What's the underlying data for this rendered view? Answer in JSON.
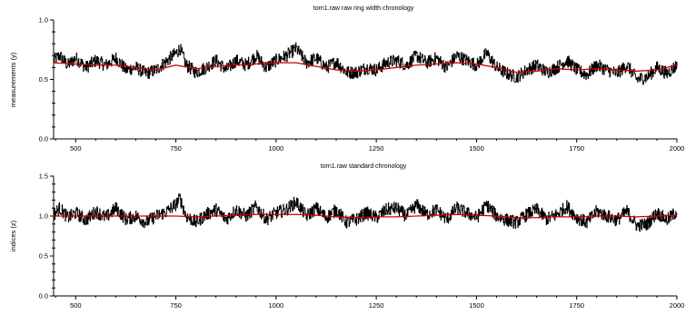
{
  "chart_data": [
    {
      "type": "line",
      "title": "torn1.raw raw ring width chronology",
      "xlabel": "",
      "ylabel": "measurements (y)",
      "xlim": [
        445,
        2000
      ],
      "ylim": [
        0.0,
        1.0
      ],
      "xticks": [
        500,
        750,
        1000,
        1250,
        1500,
        1750,
        2000
      ],
      "yticks": [
        0.0,
        0.5,
        1.0
      ],
      "ytick_labels": [
        "0.0",
        "0.5",
        "1.0"
      ],
      "grid": false,
      "series": [
        {
          "color": "#000000",
          "style": "raw",
          "x": [
            445,
            460,
            480,
            500,
            525,
            550,
            575,
            600,
            625,
            650,
            675,
            700,
            725,
            750,
            760,
            775,
            800,
            825,
            850,
            875,
            900,
            925,
            950,
            975,
            1000,
            1025,
            1050,
            1075,
            1100,
            1125,
            1150,
            1175,
            1200,
            1225,
            1250,
            1275,
            1300,
            1325,
            1350,
            1375,
            1400,
            1425,
            1450,
            1475,
            1500,
            1525,
            1550,
            1575,
            1600,
            1625,
            1650,
            1675,
            1700,
            1725,
            1750,
            1775,
            1800,
            1825,
            1850,
            1875,
            1900,
            1925,
            1950,
            1975,
            2000
          ],
          "y": [
            0.66,
            0.7,
            0.62,
            0.68,
            0.6,
            0.66,
            0.62,
            0.68,
            0.58,
            0.6,
            0.55,
            0.58,
            0.65,
            0.72,
            0.76,
            0.62,
            0.56,
            0.6,
            0.66,
            0.58,
            0.66,
            0.62,
            0.7,
            0.6,
            0.66,
            0.7,
            0.76,
            0.64,
            0.68,
            0.6,
            0.65,
            0.56,
            0.56,
            0.6,
            0.58,
            0.64,
            0.66,
            0.62,
            0.7,
            0.64,
            0.68,
            0.6,
            0.7,
            0.66,
            0.62,
            0.72,
            0.6,
            0.55,
            0.52,
            0.58,
            0.62,
            0.56,
            0.6,
            0.66,
            0.58,
            0.54,
            0.62,
            0.58,
            0.55,
            0.62,
            0.5,
            0.52,
            0.6,
            0.55,
            0.62
          ]
        },
        {
          "color": "#cc0000",
          "style": "smooth",
          "x": [
            445,
            500,
            550,
            600,
            650,
            700,
            750,
            800,
            850,
            900,
            950,
            1000,
            1050,
            1100,
            1150,
            1200,
            1250,
            1300,
            1350,
            1400,
            1450,
            1500,
            1550,
            1600,
            1650,
            1700,
            1750,
            1800,
            1850,
            1900,
            1950,
            2000
          ],
          "y": [
            0.64,
            0.63,
            0.62,
            0.62,
            0.6,
            0.58,
            0.62,
            0.59,
            0.61,
            0.62,
            0.63,
            0.64,
            0.64,
            0.61,
            0.58,
            0.57,
            0.58,
            0.6,
            0.62,
            0.63,
            0.64,
            0.63,
            0.6,
            0.56,
            0.57,
            0.59,
            0.58,
            0.59,
            0.58,
            0.57,
            0.58,
            0.62
          ]
        }
      ]
    },
    {
      "type": "line",
      "title": "torn1.raw standard chronology",
      "xlabel": "",
      "ylabel": "indices (z)",
      "xlim": [
        445,
        2000
      ],
      "ylim": [
        0.0,
        1.5
      ],
      "xticks": [
        500,
        750,
        1000,
        1250,
        1500,
        1750,
        2000
      ],
      "yticks": [
        0.0,
        0.5,
        1.0,
        1.5
      ],
      "ytick_labels": [
        "0.0",
        "0.5",
        "1.0",
        "1.5"
      ],
      "grid": false,
      "series": [
        {
          "color": "#000000",
          "style": "raw",
          "x": [
            445,
            460,
            480,
            500,
            525,
            550,
            575,
            600,
            625,
            650,
            675,
            700,
            725,
            750,
            760,
            775,
            800,
            825,
            850,
            875,
            900,
            925,
            950,
            975,
            1000,
            1025,
            1050,
            1075,
            1100,
            1125,
            1150,
            1175,
            1200,
            1225,
            1250,
            1275,
            1300,
            1325,
            1350,
            1375,
            1400,
            1425,
            1450,
            1475,
            1500,
            1525,
            1550,
            1575,
            1600,
            1625,
            1650,
            1675,
            1700,
            1725,
            1750,
            1775,
            1800,
            1825,
            1850,
            1875,
            1900,
            1925,
            1950,
            1975,
            2000
          ],
          "y": [
            1.02,
            1.1,
            0.98,
            1.04,
            0.95,
            1.06,
            0.98,
            1.1,
            0.96,
            1.0,
            0.92,
            1.0,
            1.05,
            1.15,
            1.22,
            1.0,
            0.92,
            1.02,
            1.08,
            0.96,
            1.08,
            1.0,
            1.12,
            0.96,
            1.04,
            1.08,
            1.18,
            1.0,
            1.1,
            0.98,
            1.08,
            0.92,
            0.96,
            1.04,
            0.98,
            1.08,
            1.1,
            1.0,
            1.14,
            1.02,
            1.08,
            0.96,
            1.1,
            1.04,
            0.98,
            1.14,
            1.0,
            0.95,
            0.92,
            1.02,
            1.08,
            0.96,
            1.02,
            1.12,
            0.98,
            0.92,
            1.06,
            1.0,
            0.95,
            1.06,
            0.88,
            0.9,
            1.04,
            0.95,
            1.06
          ]
        },
        {
          "color": "#cc0000",
          "style": "smooth",
          "x": [
            445,
            500,
            550,
            600,
            650,
            700,
            750,
            800,
            850,
            900,
            950,
            1000,
            1050,
            1100,
            1150,
            1200,
            1250,
            1300,
            1350,
            1400,
            1450,
            1500,
            1550,
            1600,
            1650,
            1700,
            1750,
            1800,
            1850,
            1900,
            1950,
            2000
          ],
          "y": [
            1.0,
            1.0,
            1.0,
            1.0,
            1.0,
            1.0,
            1.0,
            0.99,
            1.0,
            1.01,
            1.02,
            1.02,
            1.02,
            1.01,
            0.99,
            0.98,
            0.99,
            0.99,
            1.0,
            1.01,
            1.02,
            1.01,
            1.0,
            0.98,
            0.98,
            0.99,
            0.99,
            1.0,
            1.0,
            0.99,
            1.0,
            1.01
          ]
        }
      ]
    }
  ]
}
